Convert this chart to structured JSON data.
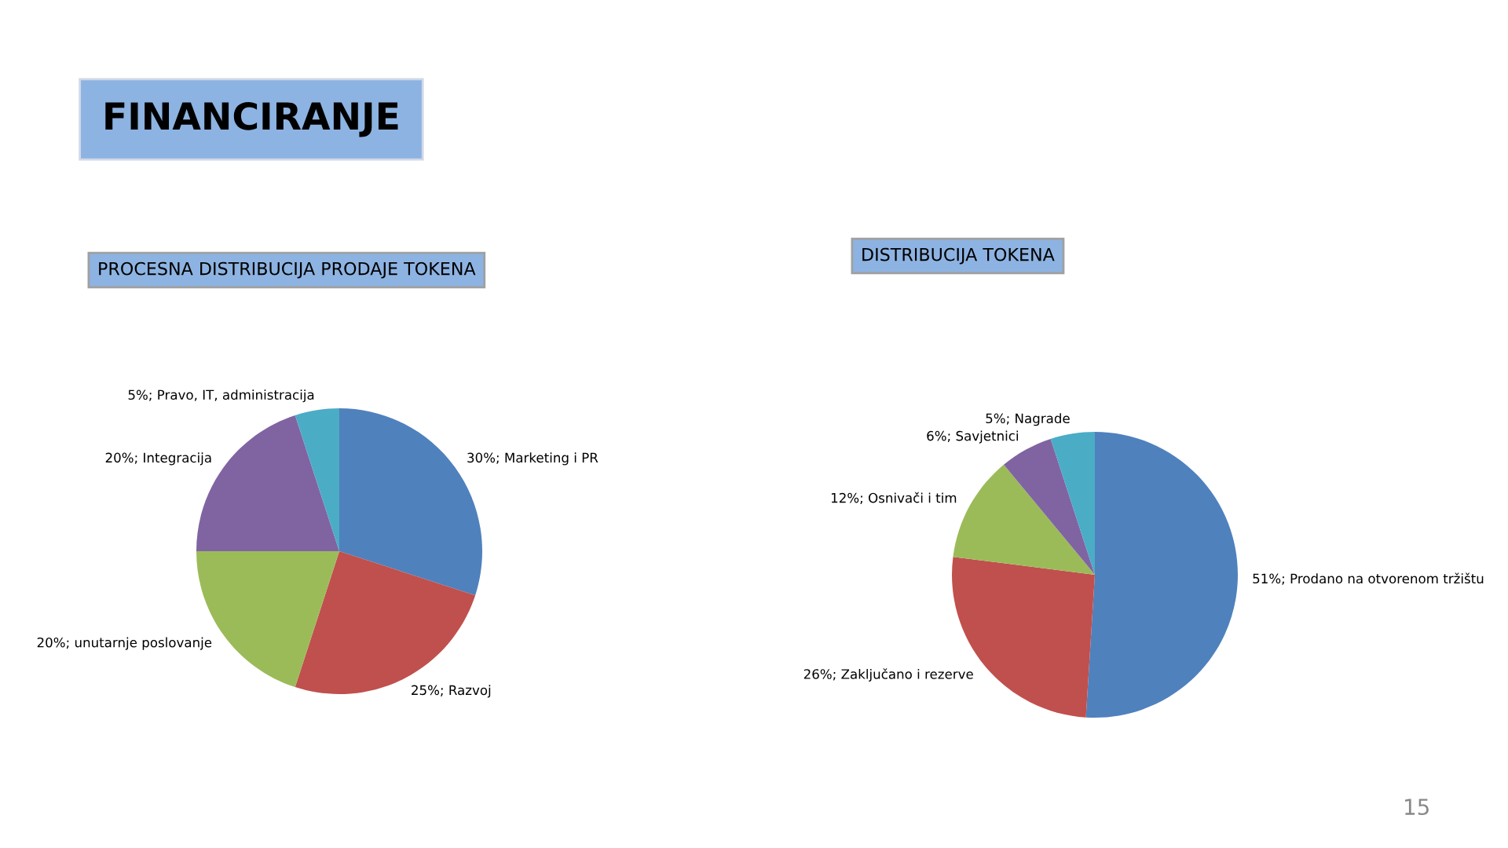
{
  "chart_data": [
    {
      "type": "pie",
      "title": "PROCESNA DISTRIBUCIJA PRODAJE TOKENA",
      "annotations": [
        "FINANCIRANJE"
      ],
      "categories": [
        "Marketing i PR",
        "Razvoj",
        "unutarnje poslovanje",
        "Integracija",
        "Pravo, IT, administracija"
      ],
      "values": [
        30,
        25,
        20,
        20,
        5
      ],
      "value_labels": [
        "30%",
        "25%",
        "20%",
        "20%",
        "5%"
      ],
      "colors": [
        "#4f81bd",
        "#c0504d",
        "#9bbb59",
        "#8064a2",
        "#4bacc6"
      ]
    },
    {
      "type": "pie",
      "title": "DISTRIBUCIJA TOKENA",
      "annotations": [
        "15"
      ],
      "categories": [
        "Prodano na otvorenom tržištu",
        "Zaključano i rezerve",
        "Osnivači i tim",
        "Savjetnici",
        "Nagrade"
      ],
      "values": [
        51,
        26,
        12,
        6,
        5
      ],
      "value_labels": [
        "51%",
        "26%",
        "12%",
        "6%",
        "5%"
      ],
      "colors": [
        "#4f81bd",
        "#c0504d",
        "#9bbb59",
        "#8064a2",
        "#4bacc6"
      ]
    }
  ]
}
